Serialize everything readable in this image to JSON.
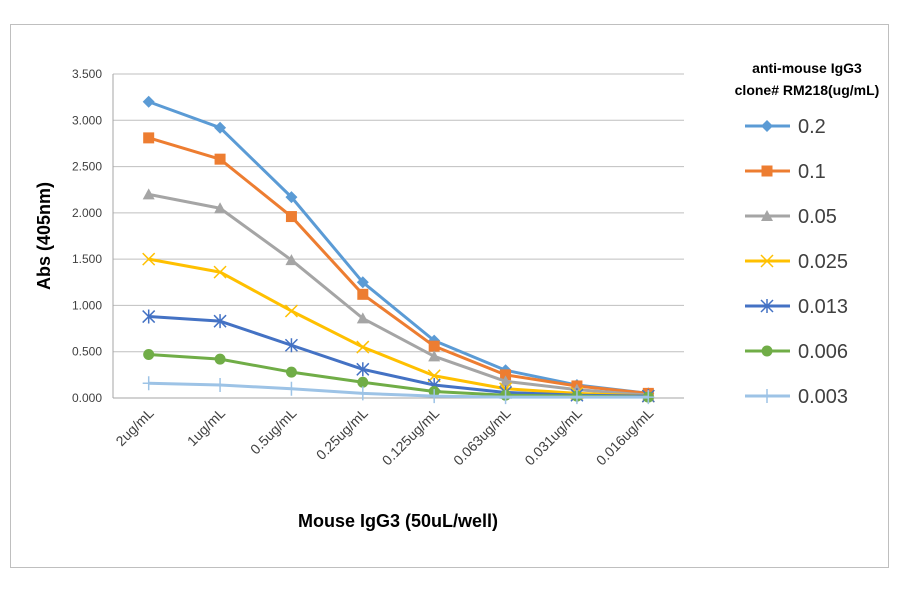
{
  "chart_data": {
    "type": "line",
    "xlabel": "Mouse IgG3 (50uL/well)",
    "ylabel": "Abs (405nm)",
    "ylim": [
      0,
      3.5
    ],
    "yticks": [
      "0.000",
      "0.500",
      "1.000",
      "1.500",
      "2.000",
      "2.500",
      "3.000",
      "3.500"
    ],
    "grid": true,
    "categories": [
      "2ug/mL",
      "1ug/mL",
      "0.5ug/mL",
      "0.25ug/mL",
      "0.125ug/mL",
      "0.063ug/mL",
      "0.031ug/mL",
      "0.016ug/mL"
    ],
    "legend": {
      "title_lines": [
        "anti-mouse IgG3",
        "clone# RM218(ug/mL)"
      ],
      "placement": "right"
    },
    "series": [
      {
        "name": "0.2",
        "color": "#5B9BD5",
        "marker": "diamond",
        "values": [
          3.2,
          2.92,
          2.17,
          1.25,
          0.62,
          0.3,
          0.14,
          0.05
        ]
      },
      {
        "name": "0.1",
        "color": "#ED7D31",
        "marker": "square",
        "values": [
          2.81,
          2.58,
          1.96,
          1.12,
          0.56,
          0.25,
          0.13,
          0.05
        ]
      },
      {
        "name": "0.05",
        "color": "#A5A5A5",
        "marker": "triangle",
        "values": [
          2.2,
          2.05,
          1.49,
          0.86,
          0.45,
          0.18,
          0.09,
          0.03
        ]
      },
      {
        "name": "0.025",
        "color": "#FFC000",
        "marker": "x",
        "values": [
          1.5,
          1.36,
          0.94,
          0.55,
          0.24,
          0.1,
          0.05,
          0.02
        ]
      },
      {
        "name": "0.013",
        "color": "#4472C4",
        "marker": "asterisk",
        "values": [
          0.88,
          0.83,
          0.57,
          0.31,
          0.14,
          0.06,
          0.03,
          0.02
        ]
      },
      {
        "name": "0.006",
        "color": "#70AD47",
        "marker": "circle",
        "values": [
          0.47,
          0.42,
          0.28,
          0.17,
          0.07,
          0.03,
          0.02,
          0.01
        ]
      },
      {
        "name": "0.003",
        "color": "#9DC3E6",
        "marker": "plus",
        "values": [
          0.16,
          0.14,
          0.1,
          0.05,
          0.02,
          0.01,
          0.01,
          0.01
        ]
      }
    ]
  }
}
